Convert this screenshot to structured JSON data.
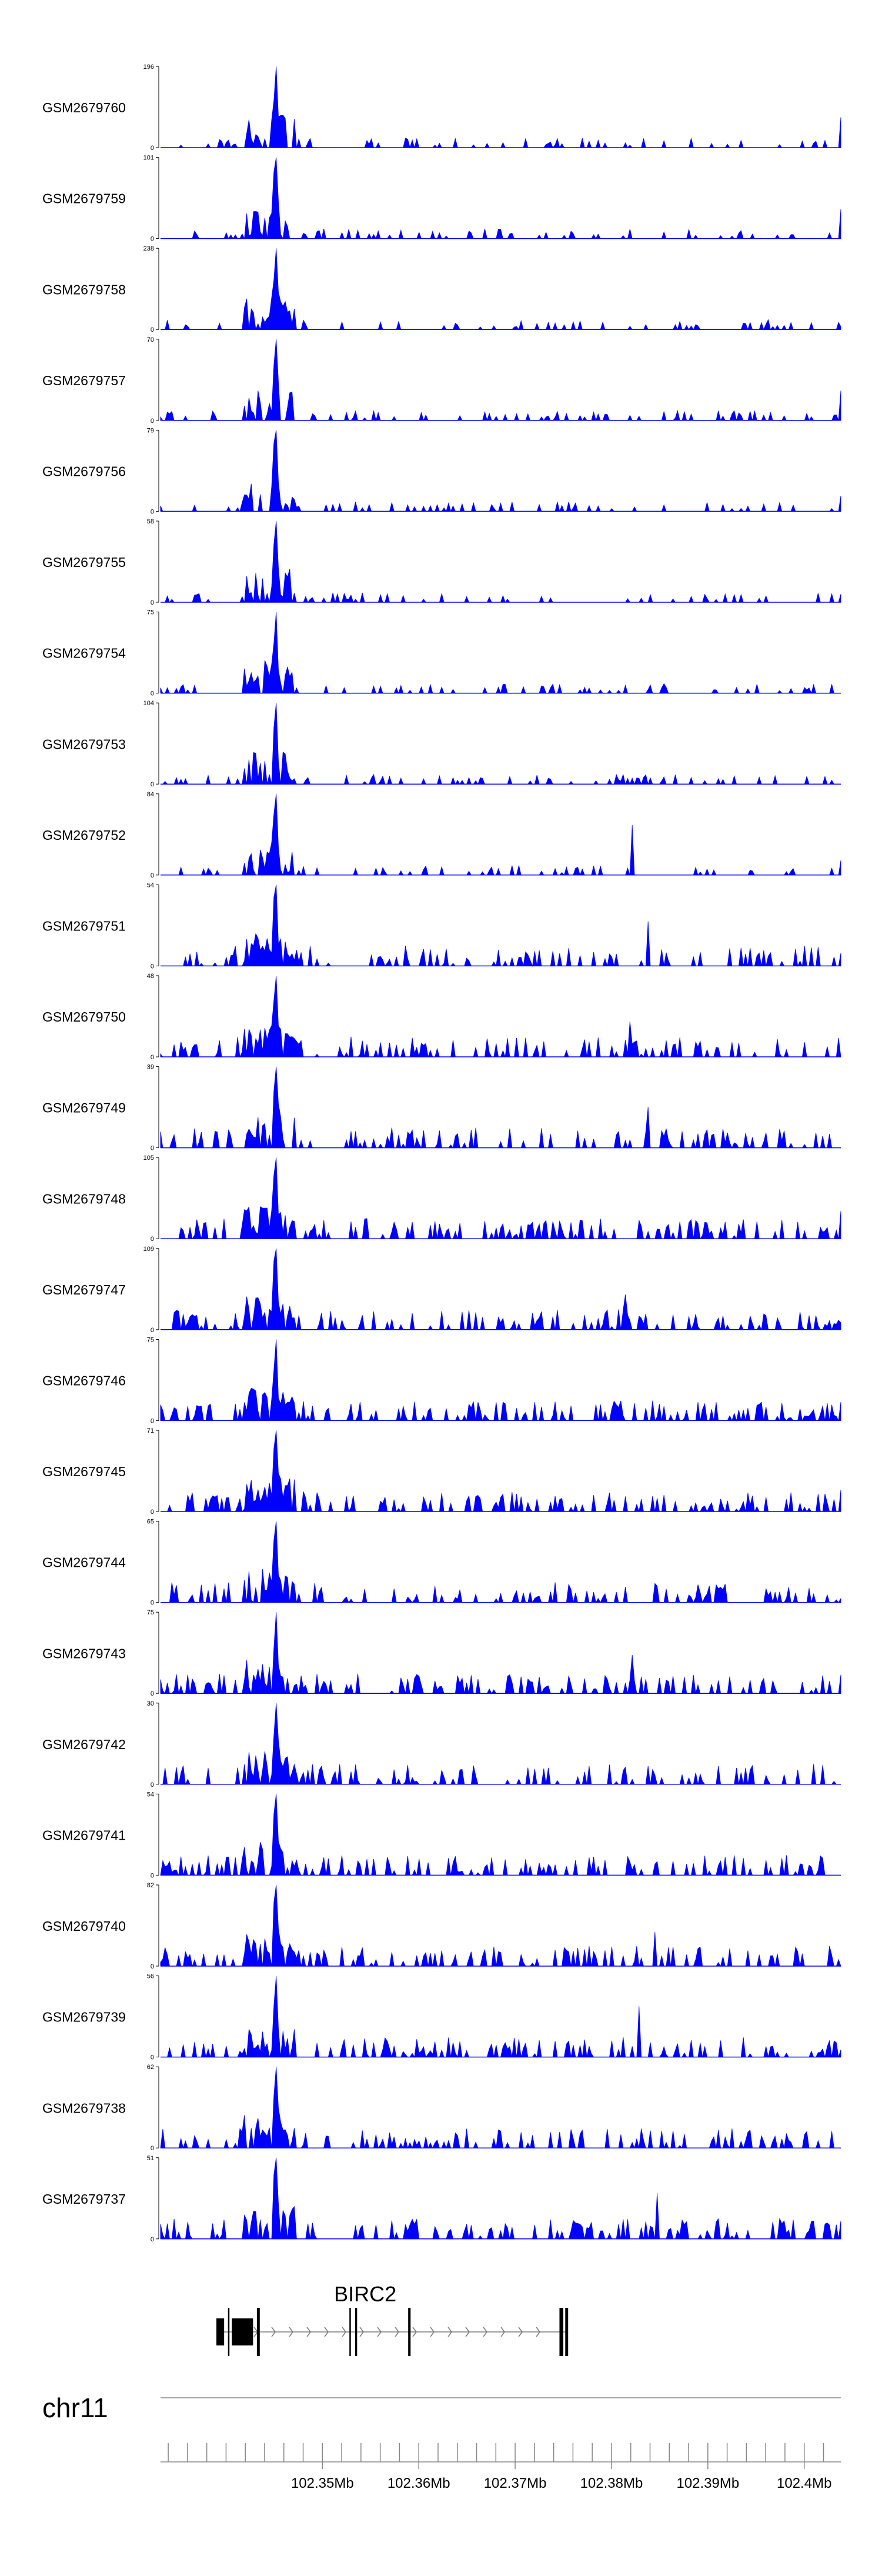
{
  "chart_data": {
    "type": "area",
    "color": "#0000ff",
    "axis_color": "#000000",
    "x_range_bp": [
      102333200,
      102403800
    ],
    "tracks": [
      {
        "name": "GSM2679760",
        "ymax": 196
      },
      {
        "name": "GSM2679759",
        "ymax": 101
      },
      {
        "name": "GSM2679758",
        "ymax": 238
      },
      {
        "name": "GSM2679757",
        "ymax": 70
      },
      {
        "name": "GSM2679756",
        "ymax": 79
      },
      {
        "name": "GSM2679755",
        "ymax": 58
      },
      {
        "name": "GSM2679754",
        "ymax": 75
      },
      {
        "name": "GSM2679753",
        "ymax": 104
      },
      {
        "name": "GSM2679752",
        "ymax": 84
      },
      {
        "name": "GSM2679751",
        "ymax": 54
      },
      {
        "name": "GSM2679750",
        "ymax": 48
      },
      {
        "name": "GSM2679749",
        "ymax": 39
      },
      {
        "name": "GSM2679748",
        "ymax": 105
      },
      {
        "name": "GSM2679747",
        "ymax": 109
      },
      {
        "name": "GSM2679746",
        "ymax": 75
      },
      {
        "name": "GSM2679745",
        "ymax": 71
      },
      {
        "name": "GSM2679744",
        "ymax": 65
      },
      {
        "name": "GSM2679743",
        "ymax": 75
      },
      {
        "name": "GSM2679742",
        "ymax": 30
      },
      {
        "name": "GSM2679741",
        "ymax": 54
      },
      {
        "name": "GSM2679740",
        "ymax": 82
      },
      {
        "name": "GSM2679739",
        "ymax": 56
      },
      {
        "name": "GSM2679738",
        "ymax": 62
      },
      {
        "name": "GSM2679737",
        "ymax": 51
      }
    ],
    "y_min_label": "0",
    "gene": {
      "name": "BIRC2",
      "strand": "+",
      "start_bp": 102339000,
      "end_bp": 102375500,
      "exons_bp": [
        [
          102339000,
          102339800
        ],
        [
          102340200,
          102340300
        ],
        [
          102340600,
          102342800
        ],
        [
          102343200,
          102343500
        ],
        [
          102352800,
          102352950
        ],
        [
          102353400,
          102353600
        ],
        [
          102358900,
          102359150
        ],
        [
          102374600,
          102375000
        ],
        [
          102375200,
          102375500
        ]
      ]
    },
    "chromosome": "chr11",
    "x_ticks": [
      {
        "pos_bp": 102350000,
        "label": "102.35Mb"
      },
      {
        "pos_bp": 102360000,
        "label": "102.36Mb"
      },
      {
        "pos_bp": 102370000,
        "label": "102.37Mb"
      },
      {
        "pos_bp": 102380000,
        "label": "102.38Mb"
      },
      {
        "pos_bp": 102390000,
        "label": "102.39Mb"
      },
      {
        "pos_bp": 102400000,
        "label": "102.4Mb"
      }
    ],
    "minor_tick_step_bp": 2000
  }
}
